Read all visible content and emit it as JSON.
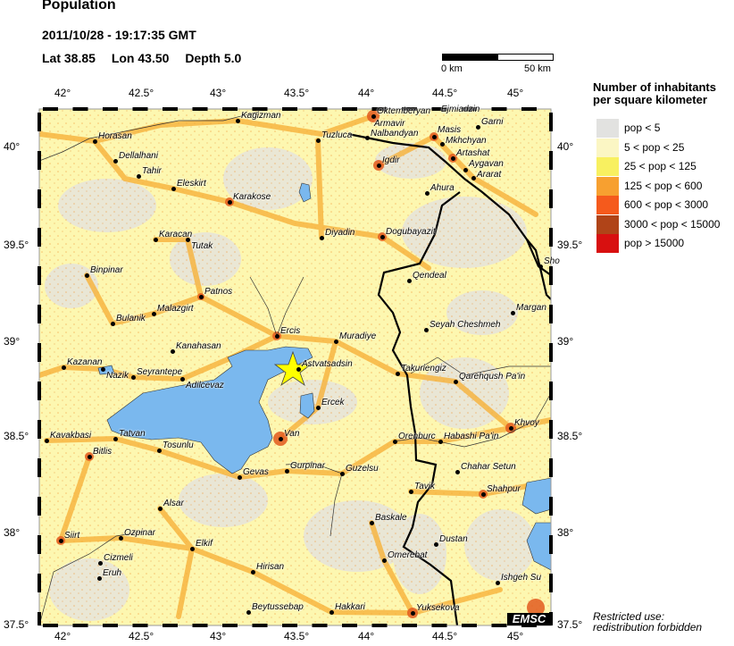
{
  "header": {
    "title": "Population",
    "datetime": "2011/10/28 - 19:17:35 GMT",
    "lat": "Lat 38.85",
    "lon": "Lon  43.50",
    "depth": "Depth  5.0"
  },
  "scale_bar": {
    "start": "0 km",
    "end": "50 km"
  },
  "axes": {
    "lon_ticks": [
      "42°",
      "42.5°",
      "43°",
      "43.5°",
      "44°",
      "44.5°",
      "45°"
    ],
    "lat_ticks": [
      "40°",
      "39.5°",
      "39°",
      "38.5°",
      "38°",
      "37.5°"
    ]
  },
  "epicenter": {
    "lat": 38.85,
    "lon": 43.5,
    "marker": "star-icon",
    "color": "#ffff00"
  },
  "legend": {
    "title_line1": "Number of inhabitants",
    "title_line2": "per square kilometer",
    "items": [
      {
        "label": "pop < 5",
        "color": "#e2e2e0"
      },
      {
        "label": "5 < pop < 25",
        "color": "#fbf6c4"
      },
      {
        "label": "25 < pop < 125",
        "color": "#f8f060"
      },
      {
        "label": "125 < pop < 600",
        "color": "#f7a030"
      },
      {
        "label": "600 < pop < 3000",
        "color": "#f55a1c"
      },
      {
        "label": "3000 < pop < 15000",
        "color": "#b04418"
      },
      {
        "label": "pop > 15000",
        "color": "#d81010"
      }
    ]
  },
  "colors": {
    "water": "#7ab8ee",
    "border": "#000000",
    "road_orange": "#f5a33a",
    "land_yellow": "#fdf59a"
  },
  "cities": [
    "Kagizman",
    "Oktemberyan",
    "Ejmiadzin",
    "Garni",
    "Horasan",
    "Armavir",
    "Nalbandyan",
    "Masis",
    "Mkhchyan",
    "Artashat",
    "Aygavan",
    "Ararat",
    "Tuzluca",
    "Dellalhani",
    "Igdir",
    "Tahir",
    "Eleskirt",
    "Ahura",
    "Karakose",
    "Karacan",
    "Tutak",
    "Diyadin",
    "Dogubayazit",
    "Qendeal",
    "Binpinar",
    "Sho",
    "Patnos",
    "Margan",
    "Malazgirt",
    "Bulanik",
    "Seyah Cheshmeh",
    "Ercis",
    "Muradiye",
    "Kanahasan",
    "Kazanan",
    "Nazik",
    "Astvatsadsin",
    "Seyrantepe",
    "Adilcevaz",
    "Takuriengiz",
    "Qarehqush Pa'in",
    "Ercek",
    "Khvoy",
    "Kavakbasi",
    "Tatvan",
    "Van",
    "Orenburc",
    "Habashi Pa'in",
    "Tosunlu",
    "Bitlis",
    "Gurpinar",
    "Gevas",
    "Guzelsu",
    "Chahar Setun",
    "Tavik",
    "Shahpur",
    "Alsar",
    "Baskale",
    "Ozpinar",
    "Siirt",
    "Dustan",
    "Elkif",
    "Cizmeli",
    "Omerebat",
    "Hirisan",
    "Eruh",
    "Ishgeh Su",
    "Beytussebap",
    "Hakkari",
    "Yuksekova"
  ],
  "logo": "EMSC",
  "notice_line1": "Restricted use:",
  "notice_line2": "redistribution forbidden"
}
